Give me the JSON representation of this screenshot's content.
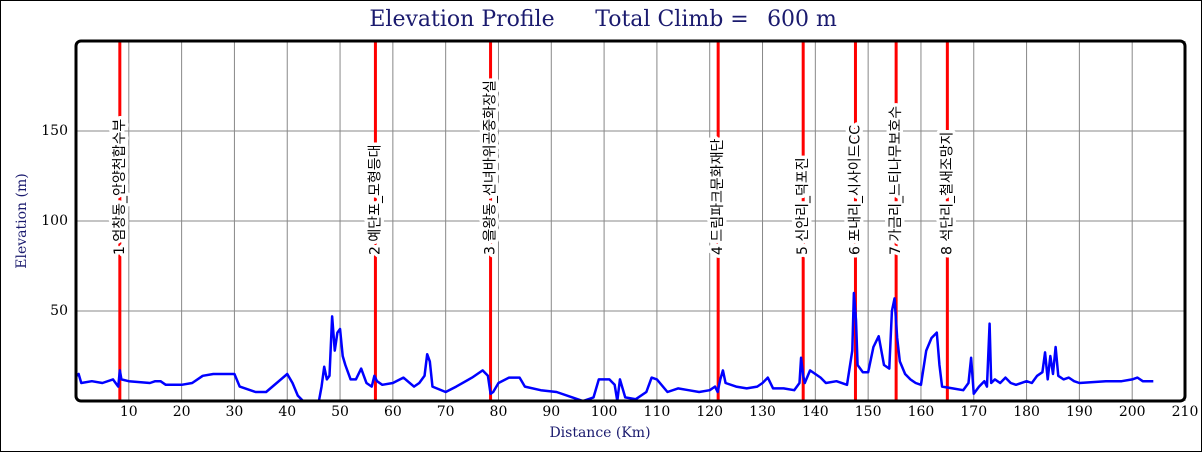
{
  "chart_data": {
    "type": "line",
    "title": "Elevation Profile",
    "total_climb_label": "Total Climb =",
    "total_climb": "600 m",
    "xlabel": "Distance (Km)",
    "ylabel": "Elevation (m)",
    "xlim": [
      0,
      210
    ],
    "ylim": [
      0,
      200
    ],
    "xticks": [
      10,
      20,
      30,
      40,
      50,
      60,
      70,
      80,
      90,
      100,
      110,
      120,
      130,
      140,
      150,
      160,
      170,
      180,
      190,
      200,
      210
    ],
    "yticks": [
      50,
      100,
      150
    ],
    "grid": true,
    "waypoint_color": "#ff0000",
    "waypoints": [
      {
        "x": 8.3,
        "label": "1 엄창동_안양천합수부"
      },
      {
        "x": 56.7,
        "label": "2 예단포_모형등대"
      },
      {
        "x": 78.5,
        "label": "3 을왕동_선녀바위공중화장실"
      },
      {
        "x": 121.6,
        "label": "4 드림파크문화재단"
      },
      {
        "x": 137.7,
        "label": "5 신안리_덕포진"
      },
      {
        "x": 147.6,
        "label": "6 포내리_시사이드CC"
      },
      {
        "x": 155.3,
        "label": "7 가금리_느티나무보호수"
      },
      {
        "x": 165.0,
        "label": "8 석단리_철새조망지"
      }
    ],
    "series": [
      {
        "color": "#0000ff",
        "x": [
          0,
          0.5,
          1,
          3,
          5,
          7,
          8,
          8.3,
          8.6,
          10,
          14,
          15,
          16,
          17,
          20,
          22,
          24,
          26,
          30,
          31,
          34,
          36,
          38,
          40,
          41,
          42,
          43,
          45,
          46,
          46.5,
          47,
          47.5,
          48,
          48.5,
          49,
          49.5,
          50,
          50.5,
          51,
          52,
          53,
          54,
          55,
          56,
          56.5,
          57,
          58,
          60,
          62,
          64,
          65,
          66,
          66.5,
          67,
          67.5,
          70,
          72,
          75,
          77,
          78,
          78.5,
          79,
          80,
          82,
          84,
          85,
          88,
          91,
          94,
          96,
          98,
          99,
          101,
          102,
          102.5,
          103,
          104,
          106,
          108,
          109,
          110,
          112,
          114,
          116,
          118,
          120,
          121,
          121.5,
          122,
          122.5,
          123,
          125,
          127,
          129,
          130,
          131,
          132,
          134,
          136,
          137,
          137.3,
          137.7,
          138,
          139,
          140,
          141,
          142,
          144,
          146,
          147,
          147.3,
          147.7,
          148,
          149,
          150,
          151,
          152,
          153,
          154,
          154.5,
          155,
          155.5,
          156,
          157,
          158,
          159,
          160,
          161,
          162,
          163,
          163.5,
          164,
          166,
          168,
          169,
          169.5,
          170,
          171,
          172,
          172.5,
          173,
          173.3,
          174,
          175,
          176,
          177,
          178,
          180,
          181,
          182,
          183,
          183.5,
          184,
          184.5,
          185,
          185.5,
          186,
          187,
          188,
          189,
          190,
          195,
          198,
          200,
          201,
          202,
          204
        ],
        "values": [
          14,
          15,
          10,
          11,
          10,
          12,
          8,
          17,
          12,
          11,
          10,
          11,
          11,
          9,
          9,
          10,
          14,
          15,
          15,
          8,
          5,
          5,
          10,
          15,
          10,
          3,
          0,
          0,
          0,
          8,
          19,
          12,
          14,
          47,
          28,
          38,
          40,
          25,
          20,
          12,
          12,
          18,
          10,
          8,
          14,
          11,
          9,
          10,
          13,
          8,
          10,
          14,
          26,
          22,
          8,
          5,
          8,
          13,
          17,
          14,
          4,
          5,
          10,
          13,
          13,
          8,
          6,
          5,
          2,
          0,
          2,
          12,
          12,
          9,
          0,
          12,
          2,
          1,
          5,
          13,
          12,
          5,
          7,
          6,
          5,
          6,
          8,
          5,
          12,
          17,
          10,
          8,
          7,
          8,
          10,
          13,
          7,
          7,
          6,
          10,
          24,
          14,
          10,
          17,
          15,
          13,
          10,
          11,
          9,
          28,
          60,
          45,
          20,
          16,
          16,
          30,
          36,
          20,
          18,
          50,
          57,
          35,
          22,
          15,
          12,
          10,
          9,
          28,
          35,
          38,
          20,
          8,
          7,
          6,
          10,
          24,
          4,
          8,
          11,
          8,
          43,
          10,
          12,
          10,
          13,
          10,
          9,
          11,
          10,
          14,
          16,
          27,
          12,
          25,
          15,
          30,
          14,
          12,
          13,
          11,
          10,
          11,
          11,
          12,
          13,
          11,
          11
        ]
      }
    ]
  }
}
